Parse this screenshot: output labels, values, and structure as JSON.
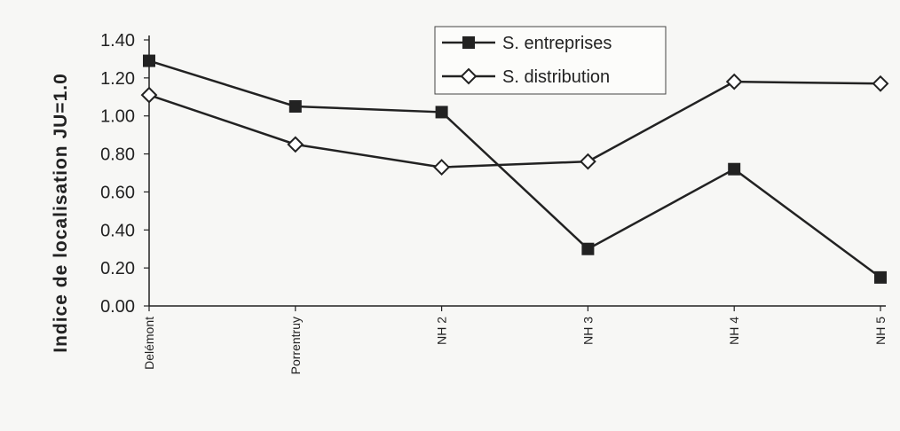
{
  "chart_data": {
    "type": "line",
    "ylabel": "Indice de localisation JU=1.0",
    "xlabel": "",
    "categories": [
      "Delémont",
      "Porrentruy",
      "NH 2",
      "NH 3",
      "NH 4",
      "NH 5"
    ],
    "ylim": [
      0,
      1.4
    ],
    "yticks": [
      "0.00",
      "0.20",
      "0.40",
      "0.60",
      "0.80",
      "1.00",
      "1.20",
      "1.40"
    ],
    "grid": false,
    "legend_position": "top-right",
    "series": [
      {
        "name": "S. entreprises",
        "marker": "filled-square",
        "color": "#222222",
        "values": [
          1.29,
          1.05,
          1.02,
          0.3,
          0.72,
          0.15
        ]
      },
      {
        "name": "S. distribution",
        "marker": "open-diamond",
        "color": "#222222",
        "values": [
          1.11,
          0.85,
          0.73,
          0.76,
          1.18,
          1.17
        ]
      }
    ]
  }
}
